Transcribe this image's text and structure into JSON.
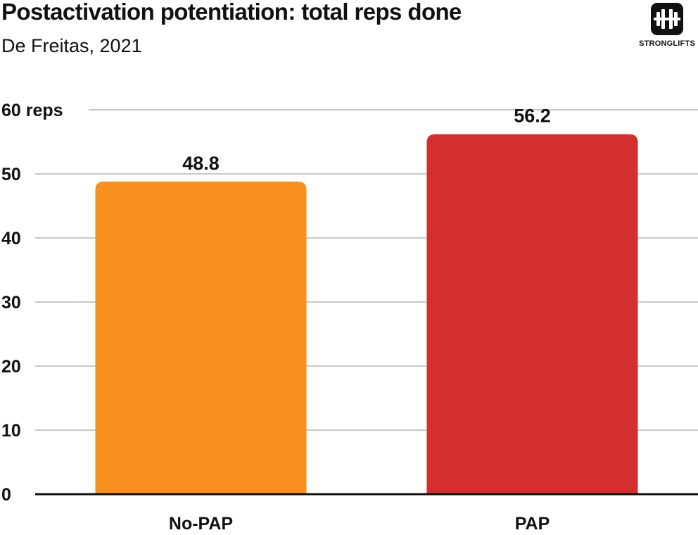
{
  "header": {
    "title": "Postactivation potentiation: total reps done",
    "subtitle": "De Freitas, 2021"
  },
  "logo": {
    "text": "STRONGLIFTS",
    "icon": "barbell-icon"
  },
  "chart_data": {
    "type": "bar",
    "title": "Postactivation potentiation: total reps done",
    "subtitle": "De Freitas, 2021",
    "categories": [
      "No-PAP",
      "PAP"
    ],
    "values": [
      48.8,
      56.2
    ],
    "data_labels": [
      "48.8",
      "56.2"
    ],
    "colors": [
      "#F7901E",
      "#D32F2F"
    ],
    "ylim": [
      0,
      60
    ],
    "yticks": [
      0,
      10,
      20,
      30,
      40,
      50,
      60
    ],
    "ytick_labels": [
      "0",
      "10",
      "20",
      "30",
      "40",
      "50",
      "60 reps"
    ],
    "xlabel": "",
    "ylabel": "",
    "grid": true,
    "legend": "none"
  }
}
